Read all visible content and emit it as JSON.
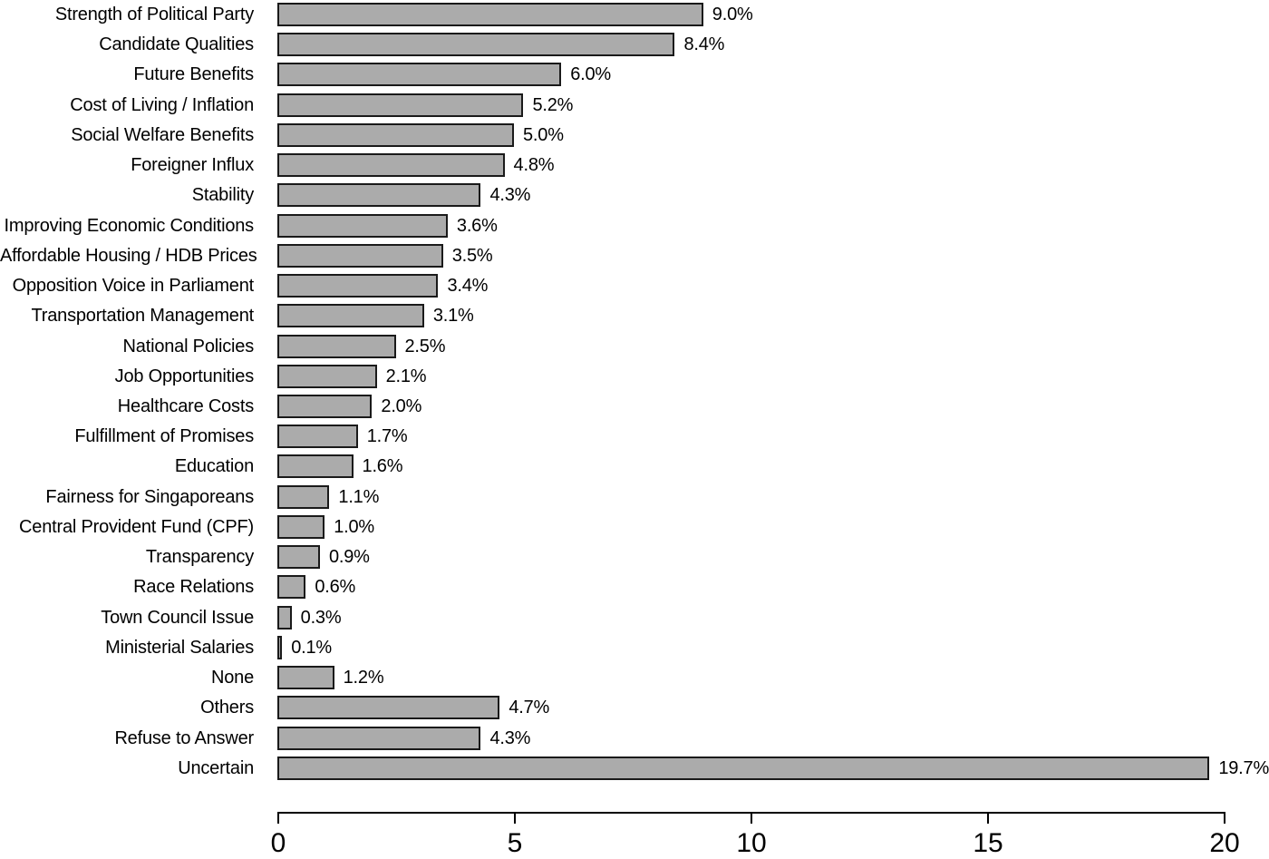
{
  "chart_data": {
    "type": "bar",
    "orientation": "horizontal",
    "title": "",
    "xlabel": "",
    "ylabel": "",
    "xlim": [
      0,
      20
    ],
    "x_ticks": [
      "0",
      "5",
      "10",
      "15",
      "20"
    ],
    "x_tick_values": [
      0,
      5,
      10,
      15,
      20
    ],
    "grid": false,
    "legend": "none",
    "bar_color": "#ababab",
    "bar_border_color": "#1a1a1a",
    "categories": [
      "Strength of Political Party",
      "Candidate Qualities",
      "Future Benefits",
      "Cost of Living / Inflation",
      "Social Welfare Benefits",
      "Foreigner Influx",
      "Stability",
      "Improving Economic Conditions",
      "Affordable Housing / HDB Prices",
      "Opposition Voice in Parliament",
      "Transportation Management",
      "National Policies",
      "Job Opportunities",
      "Healthcare Costs",
      "Fulfillment of Promises",
      "Education",
      "Fairness for Singaporeans",
      "Central Provident Fund (CPF)",
      "Transparency",
      "Race Relations",
      "Town Council Issue",
      "Ministerial Salaries",
      "None",
      "Others",
      "Refuse to Answer",
      "Uncertain"
    ],
    "values": [
      9.0,
      8.4,
      6.0,
      5.2,
      5.0,
      4.8,
      4.3,
      3.6,
      3.5,
      3.4,
      3.1,
      2.5,
      2.1,
      2.0,
      1.7,
      1.6,
      1.1,
      1.0,
      0.9,
      0.6,
      0.3,
      0.1,
      1.2,
      4.7,
      4.3,
      19.7
    ],
    "value_labels": [
      "9.0%",
      "8.4%",
      "6.0%",
      "5.2%",
      "5.0%",
      "4.8%",
      "4.3%",
      "3.6%",
      "3.5%",
      "3.4%",
      "3.1%",
      "2.5%",
      "2.1%",
      "2.0%",
      "1.7%",
      "1.6%",
      "1.1%",
      "1.0%",
      "0.9%",
      "0.6%",
      "0.3%",
      "0.1%",
      "1.2%",
      "4.7%",
      "4.3%",
      "19.7%"
    ]
  }
}
